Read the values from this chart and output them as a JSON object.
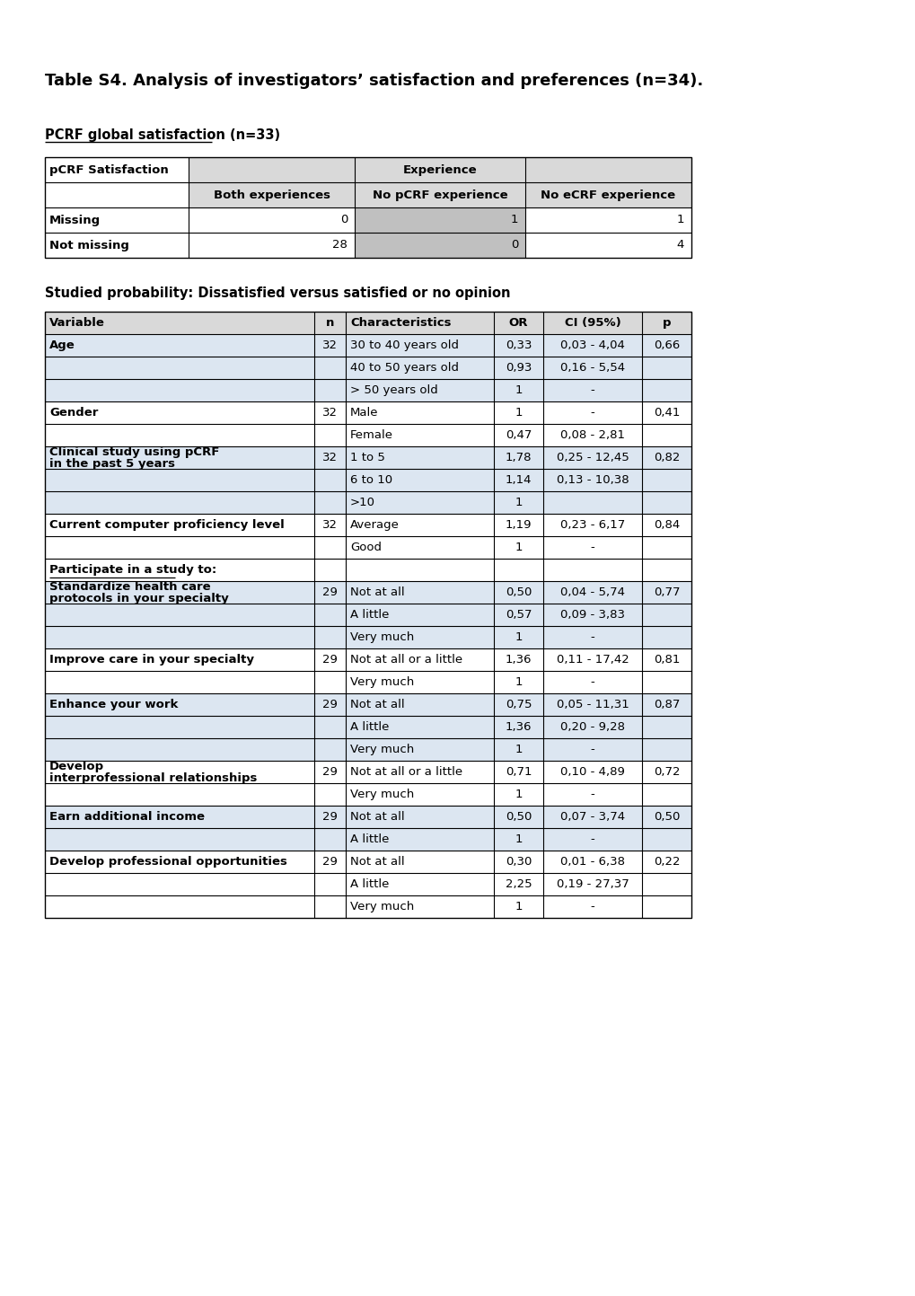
{
  "title": "Table S4. Analysis of investigators’ satisfaction and preferences (n=34).",
  "subtitle1": "PCRF global satisfaction (n=33)",
  "subtitle2": "Studied probability: Dissatisfied versus satisfied or no opinion",
  "table1_rows": [
    [
      "Missing",
      "0",
      "1",
      "1"
    ],
    [
      "Not missing",
      "28",
      "0",
      "4"
    ]
  ],
  "table2_rows": [
    {
      "var": "Age",
      "n": "32",
      "char": "30 to 40 years old",
      "or": "0,33",
      "ci": "0,03 - 4,04",
      "p": "0,66",
      "shaded": true
    },
    {
      "var": "",
      "n": "",
      "char": "40 to 50 years old",
      "or": "0,93",
      "ci": "0,16 - 5,54",
      "p": "",
      "shaded": true
    },
    {
      "var": "",
      "n": "",
      "char": "> 50 years old",
      "or": "1",
      "ci": "-",
      "p": "",
      "shaded": true
    },
    {
      "var": "Gender",
      "n": "32",
      "char": "Male",
      "or": "1",
      "ci": "-",
      "p": "0,41",
      "shaded": false
    },
    {
      "var": "",
      "n": "",
      "char": "Female",
      "or": "0,47",
      "ci": "0,08 - 2,81",
      "p": "",
      "shaded": false
    },
    {
      "var": "Clinical study using pCRF in the past 5 years",
      "n": "32",
      "char": "1 to 5",
      "or": "1,78",
      "ci": "0,25 - 12,45",
      "p": "0,82",
      "shaded": true
    },
    {
      "var": "",
      "n": "",
      "char": "6 to 10",
      "or": "1,14",
      "ci": "0,13 - 10,38",
      "p": "",
      "shaded": true
    },
    {
      "var": "",
      "n": "",
      "char": ">10",
      "or": "1",
      "ci": "",
      "p": "",
      "shaded": true
    },
    {
      "var": "Current computer proficiency level",
      "n": "32",
      "char": "Average",
      "or": "1,19",
      "ci": "0,23 - 6,17",
      "p": "0,84",
      "shaded": false
    },
    {
      "var": "",
      "n": "",
      "char": "Good",
      "or": "1",
      "ci": "-",
      "p": "",
      "shaded": false
    },
    {
      "var": "Participate in a study to:",
      "n": "",
      "char": "",
      "or": "",
      "ci": "",
      "p": "",
      "shaded": false,
      "section": true
    },
    {
      "var": "Standardize health care protocols in your specialty",
      "n": "29",
      "char": "Not at all",
      "or": "0,50",
      "ci": "0,04 - 5,74",
      "p": "0,77",
      "shaded": true
    },
    {
      "var": "",
      "n": "",
      "char": "A little",
      "or": "0,57",
      "ci": "0,09 - 3,83",
      "p": "",
      "shaded": true
    },
    {
      "var": "",
      "n": "",
      "char": "Very much",
      "or": "1",
      "ci": "-",
      "p": "",
      "shaded": true
    },
    {
      "var": "Improve care in your specialty",
      "n": "29",
      "char": "Not at all or a little",
      "or": "1,36",
      "ci": "0,11 - 17,42",
      "p": "0,81",
      "shaded": false
    },
    {
      "var": "",
      "n": "",
      "char": "Very much",
      "or": "1",
      "ci": "-",
      "p": "",
      "shaded": false
    },
    {
      "var": "Enhance your work",
      "n": "29",
      "char": "Not at all",
      "or": "0,75",
      "ci": "0,05 - 11,31",
      "p": "0,87",
      "shaded": true
    },
    {
      "var": "",
      "n": "",
      "char": "A little",
      "or": "1,36",
      "ci": "0,20 - 9,28",
      "p": "",
      "shaded": true
    },
    {
      "var": "",
      "n": "",
      "char": "Very much",
      "or": "1",
      "ci": "-",
      "p": "",
      "shaded": true
    },
    {
      "var": "Develop interprofessional relationships",
      "n": "29",
      "char": "Not at all or a little",
      "or": "0,71",
      "ci": "0,10 - 4,89",
      "p": "0,72",
      "shaded": false
    },
    {
      "var": "",
      "n": "",
      "char": "Very much",
      "or": "1",
      "ci": "-",
      "p": "",
      "shaded": false
    },
    {
      "var": "Earn additional income",
      "n": "29",
      "char": "Not at all",
      "or": "0,50",
      "ci": "0,07 - 3,74",
      "p": "0,50",
      "shaded": true
    },
    {
      "var": "",
      "n": "",
      "char": "A little",
      "or": "1",
      "ci": "-",
      "p": "",
      "shaded": true
    },
    {
      "var": "Develop professional opportunities",
      "n": "29",
      "char": "Not at all",
      "or": "0,30",
      "ci": "0,01 - 6,38",
      "p": "0,22",
      "shaded": false
    },
    {
      "var": "",
      "n": "",
      "char": "A little",
      "or": "2,25",
      "ci": "0,19 - 27,37",
      "p": "",
      "shaded": false
    },
    {
      "var": "",
      "n": "",
      "char": "Very much",
      "or": "1",
      "ci": "-",
      "p": "",
      "shaded": false
    }
  ],
  "bg_color": "#ffffff",
  "shaded_color": "#dce6f1",
  "header_bg": "#d9d9d9",
  "table1_col3_bg": "#c0c0c0",
  "font_size": 9.5,
  "title_font_size": 13,
  "subtitle_font_size": 10.5
}
